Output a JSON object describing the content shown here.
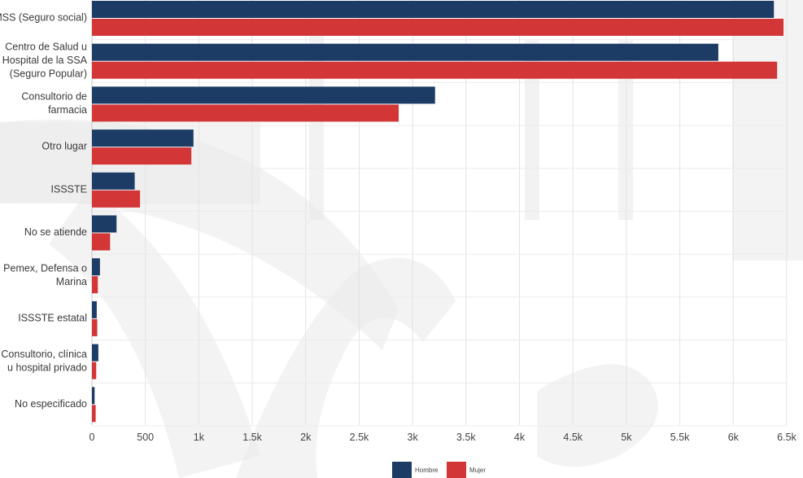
{
  "chart_data": {
    "type": "bar",
    "orientation": "horizontal",
    "categories": [
      "IMSS (Seguro social)",
      "Centro de Salud u Hospital de la SSA (Seguro Popular)",
      "Consultorio de farmacia",
      "Otro lugar",
      "ISSSTE",
      "No se atiende",
      "Pemex, Defensa o Marina",
      "ISSSTE estatal",
      "Consultorio, clínica u hospital privado",
      "No especificado"
    ],
    "category_label_lines": [
      [
        "IMSS (Seguro social)"
      ],
      [
        "Centro de Salud u",
        "Hospital de la SSA",
        "(Seguro Popular)"
      ],
      [
        "Consultorio de",
        "farmacia"
      ],
      [
        "Otro lugar"
      ],
      [
        "ISSSTE"
      ],
      [
        "No se atiende"
      ],
      [
        "Pemex, Defensa o",
        "Marina"
      ],
      [
        "ISSSTE estatal"
      ],
      [
        "Consultorio, clínica",
        "u hospital privado"
      ],
      [
        "No especificado"
      ]
    ],
    "series": [
      {
        "name": "Hombre",
        "color": "#1c3c66",
        "values": [
          6380,
          5860,
          3210,
          950,
          400,
          230,
          75,
          45,
          60,
          25
        ]
      },
      {
        "name": "Mujer",
        "color": "#d23637",
        "values": [
          6470,
          6410,
          2870,
          930,
          450,
          170,
          55,
          50,
          40,
          35
        ]
      }
    ],
    "xlim": [
      0,
      6500
    ],
    "xticks": [
      0,
      500,
      1000,
      1500,
      2000,
      2500,
      3000,
      3500,
      4000,
      4500,
      5000,
      5500,
      6000,
      6500
    ],
    "xtick_labels": [
      "0",
      "500",
      "1k",
      "1.5k",
      "2k",
      "2.5k",
      "3k",
      "3.5k",
      "4k",
      "4.5k",
      "5k",
      "5.5k",
      "6k",
      "6.5k"
    ],
    "grid": true,
    "legend_position": "bottom-center",
    "title": "",
    "xlabel": "",
    "ylabel": ""
  }
}
